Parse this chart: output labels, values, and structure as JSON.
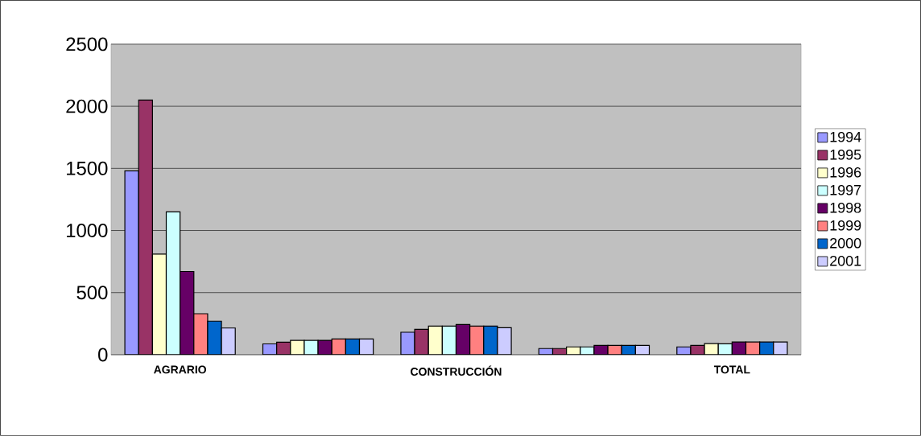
{
  "chart_data": {
    "type": "bar",
    "categories": [
      "AGRARIO",
      null,
      "CONSTRUCCIÓN",
      null,
      "TOTAL"
    ],
    "series": [
      {
        "name": "1994",
        "color": "#9999ff",
        "values": [
          1480,
          87,
          181,
          50,
          63
        ]
      },
      {
        "name": "1995",
        "color": "#993366",
        "values": [
          2050,
          101,
          205,
          50,
          75
        ]
      },
      {
        "name": "1996",
        "color": "#ffffcc",
        "values": [
          810,
          116,
          231,
          63,
          90
        ]
      },
      {
        "name": "1997",
        "color": "#ccffff",
        "values": [
          1150,
          116,
          231,
          63,
          88
        ]
      },
      {
        "name": "1998",
        "color": "#660066",
        "values": [
          670,
          116,
          244,
          75,
          103
        ]
      },
      {
        "name": "1999",
        "color": "#ff8080",
        "values": [
          330,
          127,
          231,
          75,
          103
        ]
      },
      {
        "name": "2000",
        "color": "#0066cc",
        "values": [
          270,
          127,
          231,
          75,
          103
        ]
      },
      {
        "name": "2001",
        "color": "#ccccff",
        "values": [
          215,
          127,
          218,
          75,
          103
        ]
      }
    ],
    "ylim": [
      0,
      2500
    ],
    "yticks": [
      0,
      500,
      1000,
      1500,
      2000,
      2500
    ],
    "grid": "y",
    "legend": "right"
  }
}
